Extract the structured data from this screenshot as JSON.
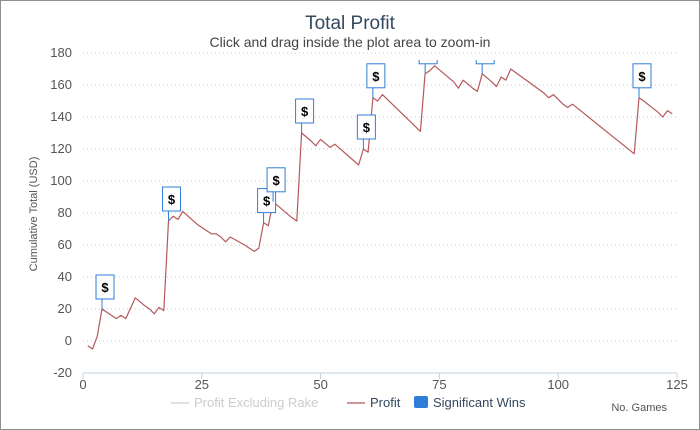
{
  "chart_data": {
    "type": "line",
    "title": "Total Profit",
    "subtitle": "Click and drag inside the plot area to zoom-in",
    "ylabel": "Cumulative Total (USD)",
    "xlabel": "No. Games",
    "xlim": [
      0,
      125
    ],
    "ylim": [
      -20,
      180
    ],
    "x_ticks": [
      0,
      25,
      50,
      75,
      100,
      125
    ],
    "y_ticks": [
      -20,
      0,
      20,
      40,
      60,
      80,
      100,
      120,
      140,
      160,
      180
    ],
    "grid": "horizontal dotted",
    "legend_position": "bottom-center",
    "series": [
      {
        "name": "Profit Excluding Rake",
        "color": "#cccccc",
        "hidden": true,
        "points": []
      },
      {
        "name": "Profit",
        "color": "#b5585a",
        "points": [
          [
            1,
            -3
          ],
          [
            2,
            -5
          ],
          [
            3,
            3
          ],
          [
            4,
            20
          ],
          [
            6,
            16
          ],
          [
            7,
            14
          ],
          [
            8,
            16
          ],
          [
            9,
            14
          ],
          [
            11,
            27
          ],
          [
            13,
            22
          ],
          [
            14,
            20
          ],
          [
            15,
            17
          ],
          [
            16,
            21
          ],
          [
            17,
            19
          ],
          [
            18,
            75
          ],
          [
            19,
            78
          ],
          [
            20,
            76
          ],
          [
            21,
            81
          ],
          [
            24,
            73
          ],
          [
            27,
            67
          ],
          [
            28,
            67
          ],
          [
            29,
            65
          ],
          [
            30,
            62
          ],
          [
            31,
            65
          ],
          [
            34,
            60
          ],
          [
            36,
            56
          ],
          [
            37,
            58
          ],
          [
            38,
            74
          ],
          [
            39,
            72
          ],
          [
            40,
            87
          ],
          [
            44,
            77
          ],
          [
            45,
            75
          ],
          [
            46,
            130
          ],
          [
            48,
            125
          ],
          [
            49,
            122
          ],
          [
            50,
            126
          ],
          [
            52,
            121
          ],
          [
            53,
            123
          ],
          [
            58,
            110
          ],
          [
            59,
            120
          ],
          [
            60,
            118
          ],
          [
            61,
            152
          ],
          [
            62,
            150
          ],
          [
            63,
            154
          ],
          [
            71,
            131
          ],
          [
            72,
            167
          ],
          [
            73,
            169
          ],
          [
            74,
            172
          ],
          [
            78,
            162
          ],
          [
            79,
            158
          ],
          [
            80,
            163
          ],
          [
            82,
            158
          ],
          [
            83,
            156
          ],
          [
            84,
            167
          ],
          [
            86,
            162
          ],
          [
            87,
            159
          ],
          [
            88,
            165
          ],
          [
            89,
            163
          ],
          [
            90,
            170
          ],
          [
            97,
            155
          ],
          [
            98,
            152
          ],
          [
            99,
            154
          ],
          [
            101,
            148
          ],
          [
            102,
            146
          ],
          [
            103,
            148
          ],
          [
            116,
            117
          ],
          [
            117,
            152
          ],
          [
            118,
            150
          ],
          [
            121,
            143
          ],
          [
            122,
            140
          ],
          [
            123,
            144
          ],
          [
            124,
            142
          ]
        ]
      }
    ],
    "significant_wins": {
      "name": "Significant Wins",
      "color": "#2f7ed8",
      "flag_label": "$",
      "points": [
        [
          4,
          20
        ],
        [
          18,
          75
        ],
        [
          38,
          74
        ],
        [
          40,
          87
        ],
        [
          46,
          130
        ],
        [
          59,
          120
        ],
        [
          61,
          152
        ],
        [
          72,
          167
        ],
        [
          84,
          167
        ],
        [
          117,
          152
        ]
      ]
    }
  }
}
